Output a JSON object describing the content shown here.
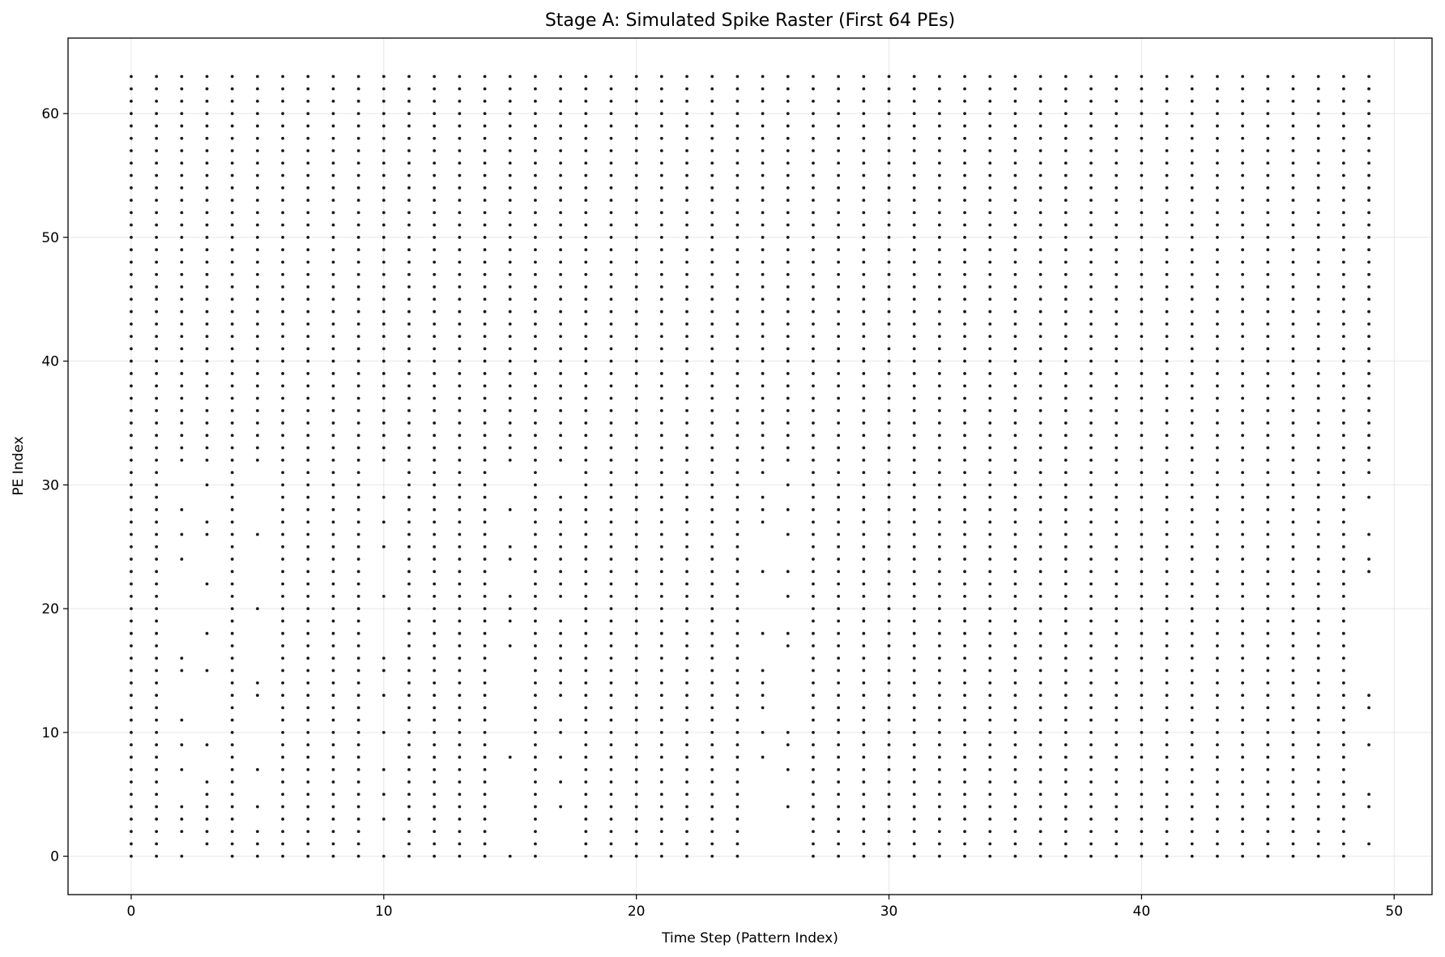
{
  "chart_data": {
    "type": "scatter",
    "title": "Stage A: Simulated Spike Raster (First 64 PEs)",
    "xlabel": "Time Step (Pattern Index)",
    "ylabel": "PE Index",
    "xlim": [
      -2.5,
      51.5
    ],
    "ylim": [
      -3.1,
      66.1
    ],
    "xticks": [
      0,
      10,
      20,
      30,
      40,
      50
    ],
    "yticks": [
      0,
      10,
      20,
      30,
      40,
      50,
      60
    ],
    "grid": true,
    "legend": "none",
    "marker_color": "#1a1a1a",
    "num_pes": 64,
    "spikes_by_step": [
      {
        "t": 0,
        "all": [
          0,
          63
        ]
      },
      {
        "t": 1,
        "all": [
          0,
          63
        ]
      },
      {
        "t": 2,
        "all": [
          32,
          63
        ],
        "extra": [
          0,
          2,
          3,
          4,
          7,
          9,
          11,
          15,
          16,
          24,
          26,
          28
        ]
      },
      {
        "t": 3,
        "all": [
          32,
          63
        ],
        "extra": [
          1,
          2,
          3,
          4,
          5,
          6,
          9,
          15,
          18,
          22,
          26,
          27,
          30
        ]
      },
      {
        "t": 4,
        "all": [
          0,
          63
        ]
      },
      {
        "t": 5,
        "all": [
          32,
          63
        ],
        "extra": [
          0,
          1,
          2,
          4,
          7,
          13,
          14,
          20,
          26
        ]
      },
      {
        "t": 6,
        "all": [
          0,
          63
        ]
      },
      {
        "t": 7,
        "all": [
          0,
          63
        ]
      },
      {
        "t": 8,
        "all": [
          0,
          63
        ]
      },
      {
        "t": 9,
        "all": [
          0,
          63
        ]
      },
      {
        "t": 10,
        "all": [
          32,
          63
        ],
        "extra": [
          0,
          3,
          5,
          7,
          10,
          13,
          15,
          16,
          21,
          25,
          27,
          29
        ]
      },
      {
        "t": 11,
        "all": [
          0,
          63
        ]
      },
      {
        "t": 12,
        "all": [
          0,
          63
        ]
      },
      {
        "t": 13,
        "all": [
          0,
          63
        ]
      },
      {
        "t": 14,
        "all": [
          0,
          63
        ]
      },
      {
        "t": 15,
        "all": [
          32,
          63
        ],
        "extra": [
          0,
          8,
          17,
          19,
          20,
          21,
          24,
          25,
          28
        ]
      },
      {
        "t": 16,
        "all": [
          0,
          63
        ]
      },
      {
        "t": 17,
        "all": [
          32,
          63
        ],
        "extra": [
          4,
          6,
          8,
          10,
          11,
          13,
          14,
          15,
          16,
          17,
          18,
          19,
          21,
          22,
          23,
          24,
          25,
          26,
          27,
          28,
          29
        ]
      },
      {
        "t": 18,
        "all": [
          0,
          63
        ]
      },
      {
        "t": 19,
        "all": [
          0,
          63
        ]
      },
      {
        "t": 20,
        "all": [
          0,
          63
        ]
      },
      {
        "t": 21,
        "all": [
          0,
          63
        ]
      },
      {
        "t": 22,
        "all": [
          0,
          63
        ]
      },
      {
        "t": 23,
        "all": [
          0,
          63
        ]
      },
      {
        "t": 24,
        "all": [
          0,
          63
        ]
      },
      {
        "t": 25,
        "all": [
          31,
          63
        ],
        "extra": [
          8,
          10,
          12,
          13,
          14,
          15,
          18,
          23,
          27,
          28,
          29
        ]
      },
      {
        "t": 26,
        "all": [
          32,
          63
        ],
        "extra": [
          4,
          7,
          9,
          10,
          17,
          18,
          21,
          23,
          26,
          28,
          30
        ]
      },
      {
        "t": 27,
        "all": [
          0,
          63
        ]
      },
      {
        "t": 28,
        "all": [
          0,
          63
        ]
      },
      {
        "t": 29,
        "all": [
          0,
          63
        ]
      },
      {
        "t": 30,
        "all": [
          0,
          63
        ]
      },
      {
        "t": 31,
        "all": [
          0,
          63
        ]
      },
      {
        "t": 32,
        "all": [
          0,
          63
        ]
      },
      {
        "t": 33,
        "all": [
          0,
          63
        ]
      },
      {
        "t": 34,
        "all": [
          0,
          63
        ]
      },
      {
        "t": 35,
        "all": [
          0,
          63
        ]
      },
      {
        "t": 36,
        "all": [
          0,
          63
        ]
      },
      {
        "t": 37,
        "all": [
          0,
          63
        ]
      },
      {
        "t": 38,
        "all": [
          0,
          63
        ]
      },
      {
        "t": 39,
        "all": [
          0,
          63
        ]
      },
      {
        "t": 40,
        "all": [
          0,
          63
        ]
      },
      {
        "t": 41,
        "all": [
          0,
          63
        ]
      },
      {
        "t": 42,
        "all": [
          0,
          63
        ]
      },
      {
        "t": 43,
        "all": [
          0,
          63
        ]
      },
      {
        "t": 44,
        "all": [
          0,
          63
        ]
      },
      {
        "t": 45,
        "all": [
          0,
          63
        ]
      },
      {
        "t": 46,
        "all": [
          0,
          63
        ]
      },
      {
        "t": 47,
        "all": [
          0,
          63
        ]
      },
      {
        "t": 48,
        "all": [
          0,
          63
        ]
      },
      {
        "t": 49,
        "all": [
          31,
          63
        ],
        "extra": [
          1,
          4,
          5,
          9,
          12,
          13,
          23,
          24,
          26,
          29
        ]
      }
    ]
  }
}
